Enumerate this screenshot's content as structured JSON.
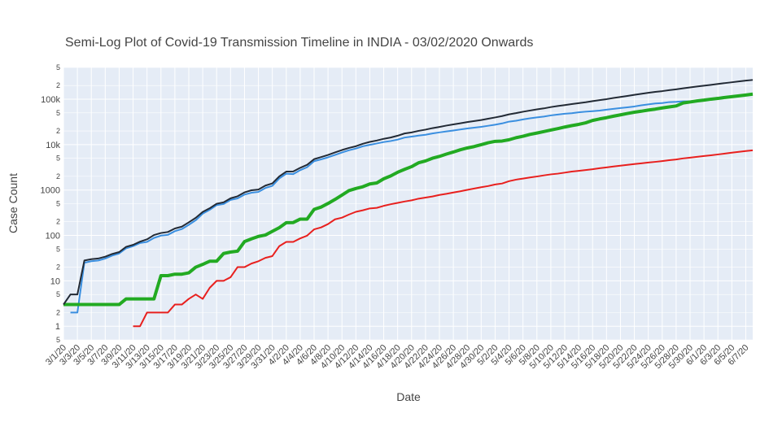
{
  "chart_data": {
    "type": "line",
    "title": "Semi-Log Plot of Covid-19 Transmission Timeline in INDIA - 03/02/2020 Onwards",
    "x_label": "Date",
    "y_label": "Case Count",
    "yscale": "log",
    "grid": true,
    "ylim": [
      0.5,
      500000
    ],
    "yticks": [
      {
        "value": 0.5,
        "label": "5"
      },
      1,
      2,
      5,
      10,
      {
        "value": 20,
        "label": "2"
      },
      {
        "value": 50,
        "label": "5"
      },
      100,
      {
        "value": 200,
        "label": "2"
      },
      {
        "value": 500,
        "label": "5"
      },
      1000,
      {
        "value": 2000,
        "label": "2"
      },
      {
        "value": 5000,
        "label": "5"
      },
      {
        "value": 10000,
        "label": "10k"
      },
      {
        "value": 20000,
        "label": "2"
      },
      {
        "value": 50000,
        "label": "5"
      },
      {
        "value": 100000,
        "label": "100k"
      },
      {
        "value": 200000,
        "label": "2"
      },
      {
        "value": 500000,
        "label": "5"
      }
    ],
    "x": [
      "3/1/20",
      "3/2/20",
      "3/3/20",
      "3/4/20",
      "3/5/20",
      "3/6/20",
      "3/7/20",
      "3/8/20",
      "3/9/20",
      "3/10/20",
      "3/11/20",
      "3/12/20",
      "3/13/20",
      "3/14/20",
      "3/15/20",
      "3/16/20",
      "3/17/20",
      "3/18/20",
      "3/19/20",
      "3/20/20",
      "3/21/20",
      "3/22/20",
      "3/23/20",
      "3/24/20",
      "3/25/20",
      "3/26/20",
      "3/27/20",
      "3/28/20",
      "3/29/20",
      "3/30/20",
      "3/31/20",
      "4/1/20",
      "4/2/20",
      "4/3/20",
      "4/4/20",
      "4/5/20",
      "4/6/20",
      "4/7/20",
      "4/8/20",
      "4/9/20",
      "4/10/20",
      "4/11/20",
      "4/12/20",
      "4/13/20",
      "4/14/20",
      "4/15/20",
      "4/16/20",
      "4/17/20",
      "4/18/20",
      "4/19/20",
      "4/20/20",
      "4/21/20",
      "4/22/20",
      "4/23/20",
      "4/24/20",
      "4/25/20",
      "4/26/20",
      "4/27/20",
      "4/28/20",
      "4/29/20",
      "4/30/20",
      "5/1/20",
      "5/2/20",
      "5/3/20",
      "5/4/20",
      "5/5/20",
      "5/6/20",
      "5/7/20",
      "5/8/20",
      "5/9/20",
      "5/10/20",
      "5/11/20",
      "5/12/20",
      "5/13/20",
      "5/14/20",
      "5/15/20",
      "5/16/20",
      "5/17/20",
      "5/18/20",
      "5/19/20",
      "5/20/20",
      "5/21/20",
      "5/22/20",
      "5/23/20",
      "5/24/20",
      "5/25/20",
      "5/26/20",
      "5/27/20",
      "5/28/20",
      "5/29/20",
      "5/30/20",
      "5/31/20",
      "6/1/20",
      "6/2/20",
      "6/3/20",
      "6/4/20",
      "6/5/20",
      "6/6/20",
      "6/7/20",
      "6/8/20"
    ],
    "xticks": [
      "3/1/20",
      "3/3/20",
      "3/5/20",
      "3/7/20",
      "3/9/20",
      "3/11/20",
      "3/13/20",
      "3/15/20",
      "3/17/20",
      "3/19/20",
      "3/21/20",
      "3/23/20",
      "3/25/20",
      "3/27/20",
      "3/29/20",
      "3/31/20",
      "4/2/20",
      "4/4/20",
      "4/6/20",
      "4/8/20",
      "4/10/20",
      "4/12/20",
      "4/14/20",
      "4/16/20",
      "4/18/20",
      "4/20/20",
      "4/22/20",
      "4/24/20",
      "4/26/20",
      "4/28/20",
      "4/30/20",
      "5/2/20",
      "5/4/20",
      "5/6/20",
      "5/8/20",
      "5/10/20",
      "5/12/20",
      "5/14/20",
      "5/16/20",
      "5/18/20",
      "5/20/20",
      "5/22/20",
      "5/24/20",
      "5/26/20",
      "5/28/20",
      "5/30/20",
      "6/1/20",
      "6/3/20",
      "6/5/20",
      "6/7/20"
    ],
    "series": [
      {
        "color": "#222a35",
        "width": 2,
        "values": [
          3,
          5,
          5,
          28,
          30,
          31,
          34,
          39,
          43,
          56,
          62,
          73,
          82,
          102,
          113,
          119,
          142,
          156,
          194,
          244,
          330,
          396,
          499,
          536,
          657,
          727,
          887,
          987,
          1024,
          1251,
          1397,
          1998,
          2543,
          2567,
          3082,
          3588,
          4778,
          5311,
          5916,
          6725,
          7598,
          8446,
          9205,
          10453,
          11487,
          12322,
          13430,
          14352,
          15722,
          17615,
          18539,
          20080,
          21370,
          23077,
          24530,
          26283,
          27890,
          29451,
          31324,
          33062,
          34863,
          37257,
          39699,
          42505,
          46437,
          49400,
          52987,
          56351,
          59695,
          62808,
          67161,
          70768,
          74292,
          78055,
          81997,
          85784,
          90648,
          95698,
          100328,
          106475,
          112028,
          118226,
          124794,
          131423,
          138536,
          144950,
          150793,
          158086,
          165386,
          173491,
          181827,
          190609,
          198370,
          207191,
          216824,
          226713,
          236184,
          246622,
          257486,
          265928
        ]
      },
      {
        "color": "#3a8fe0",
        "width": 2,
        "values": [
          null,
          2,
          2,
          25,
          27,
          28,
          31,
          36,
          40,
          52,
          58,
          68,
          72,
          88,
          99,
          103,
          124,
          138,
          171,
          216,
          301,
          366,
          464,
          493,
          605,
          654,
          793,
          871,
          907,
          1108,
          1237,
          1798,
          2288,
          2238,
          2738,
          3180,
          4310,
          4730,
          5248,
          5918,
          6700,
          7500,
          8200,
          9200,
          9900,
          10600,
          11400,
          12000,
          12900,
          14300,
          15000,
          15800,
          16500,
          17600,
          18600,
          19500,
          20500,
          21500,
          22700,
          23600,
          24600,
          26000,
          27500,
          29300,
          32100,
          33500,
          35900,
          37900,
          39800,
          41400,
          44000,
          46000,
          48000,
          49200,
          51400,
          53000,
          54600,
          56300,
          58800,
          61300,
          64000,
          66300,
          69200,
          73600,
          77100,
          80700,
          82200,
          86400,
          87700,
          89900,
          89900,
          93300,
          97600,
          101500,
          106700,
          110900,
          115900,
          120000,
          125400,
          129200
        ]
      },
      {
        "color": "#22aa22",
        "width": 4,
        "values": [
          3,
          3,
          3,
          3,
          3,
          3,
          3,
          3,
          3,
          4,
          4,
          4,
          4,
          4,
          13,
          13,
          14,
          14,
          15,
          20,
          23,
          27,
          27,
          40,
          43,
          45,
          73,
          84,
          95,
          102,
          123,
          148,
          191,
          192,
          229,
          229,
          375,
          421,
          506,
          620,
          774,
          969,
          1080,
          1181,
          1359,
          1432,
          1768,
          2041,
          2463,
          2854,
          3273,
          3975,
          4370,
          5012,
          5498,
          6185,
          6869,
          7697,
          8437,
          9068,
          9950,
          11000,
          11800,
          12000,
          12800,
          14200,
          15300,
          16800,
          18000,
          19400,
          20900,
          22500,
          24400,
          26200,
          27900,
          30200,
          34100,
          36800,
          39200,
          42300,
          45300,
          48500,
          51800,
          54400,
          57700,
          60500,
          64300,
          67700,
          71100,
          82600,
          86900,
          91800,
          95500,
          100300,
          104100,
          109500,
          114100,
          118700,
          123800,
          129300
        ]
      },
      {
        "color": "#e8201e",
        "width": 2,
        "values": [
          null,
          null,
          null,
          null,
          null,
          null,
          null,
          null,
          null,
          null,
          1,
          1,
          2,
          2,
          2,
          2,
          3,
          3,
          4,
          5,
          4,
          7,
          10,
          10,
          12,
          20,
          20,
          24,
          27,
          32,
          35,
          58,
          72,
          72,
          86,
          99,
          136,
          150,
          178,
          226,
          246,
          288,
          331,
          358,
          393,
          405,
          448,
          486,
          521,
          559,
          592,
          645,
          681,
          721,
          780,
          825,
          881,
          939,
          1008,
          1079,
          1154,
          1223,
          1323,
          1391,
          1566,
          1693,
          1785,
          1889,
          1985,
          2101,
          2212,
          2294,
          2415,
          2551,
          2649,
          2753,
          2871,
          3025,
          3156,
          3302,
          3434,
          3584,
          3726,
          3868,
          4024,
          4172,
          4337,
          4531,
          4706,
          4971,
          5164,
          5394,
          5598,
          5815,
          6075,
          6348,
          6642,
          6929,
          7207,
          7473
        ]
      }
    ]
  }
}
